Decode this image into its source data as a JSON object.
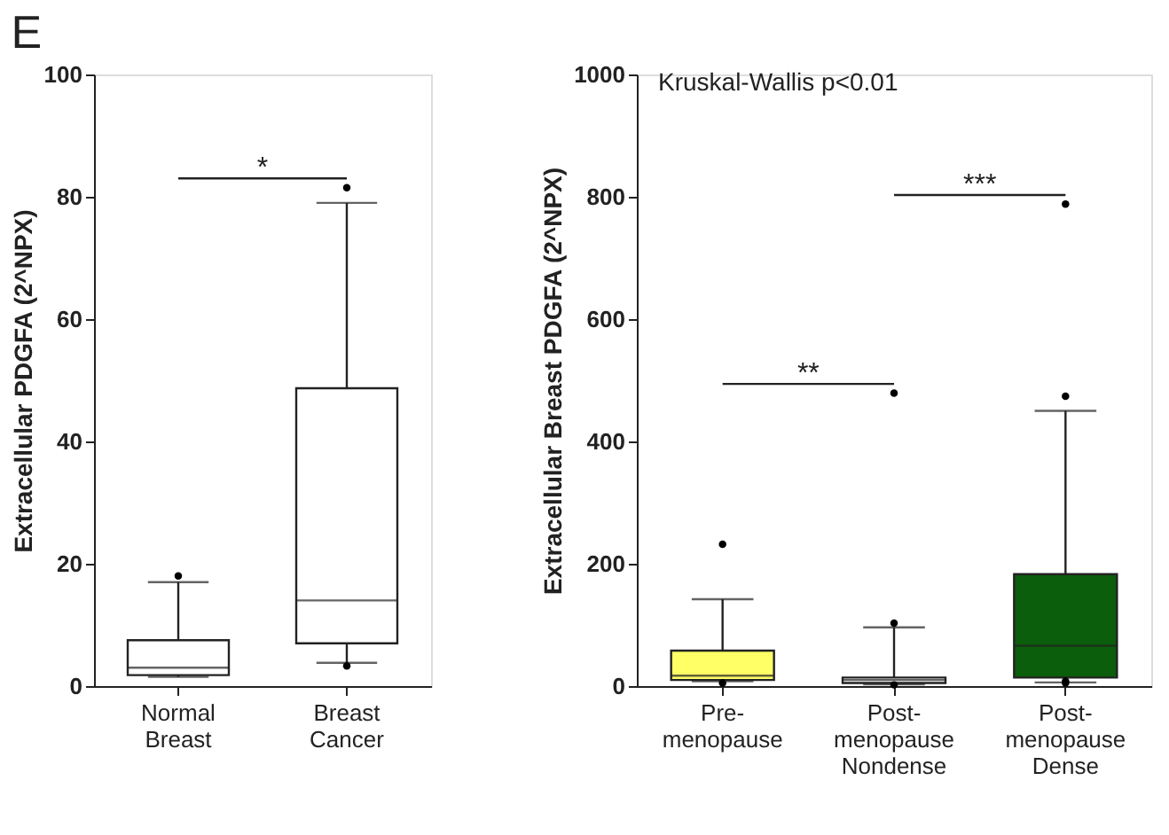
{
  "chart_data": [
    {
      "type": "box",
      "title": "E",
      "categories": [
        "Normal Breast",
        "Breast Cancer"
      ],
      "ylabel": "Extracellular PDGFA (2^NPX)",
      "ylim": [
        0,
        100
      ],
      "yticks": [
        0,
        20,
        40,
        60,
        80,
        100
      ],
      "grid": false,
      "colors": [
        "#ffffff",
        "#ffffff"
      ],
      "boxes": [
        {
          "low": 1.5,
          "q1": 1.8,
          "median": 3,
          "q3": 7.5,
          "high": 17,
          "outliers": [
            18
          ]
        },
        {
          "low": 3.8,
          "q1": 7,
          "median": 14,
          "q3": 48.7,
          "high": 79,
          "outliers": [
            81.5,
            3.3
          ]
        }
      ],
      "annotations": [
        "*"
      ]
    },
    {
      "type": "box",
      "title": "Kruskal-Wallis p<0.01",
      "categories": [
        "Pre-menopause",
        "Post-menopause Nondense",
        "Post-menopause Dense"
      ],
      "ylabel": "Extracellular Breast PDGFA (2^NPX)",
      "ylim": [
        0,
        1000
      ],
      "yticks": [
        0,
        200,
        400,
        600,
        800,
        1000
      ],
      "grid": false,
      "colors": [
        "#ffff66",
        "#ffffff",
        "#0b5e0b"
      ],
      "boxes": [
        {
          "low": 8,
          "q1": 10,
          "median": 17,
          "q3": 58,
          "high": 142,
          "outliers": [
            232,
            5
          ]
        },
        {
          "low": 3,
          "q1": 5,
          "median": 10,
          "q3": 14,
          "high": 96,
          "outliers": [
            103,
            479,
            2
          ]
        },
        {
          "low": 6,
          "q1": 14,
          "median": 66,
          "q3": 183,
          "high": 450,
          "outliers": [
            474,
            788,
            5,
            8
          ]
        }
      ],
      "annotations": [
        "**",
        "***"
      ]
    }
  ]
}
